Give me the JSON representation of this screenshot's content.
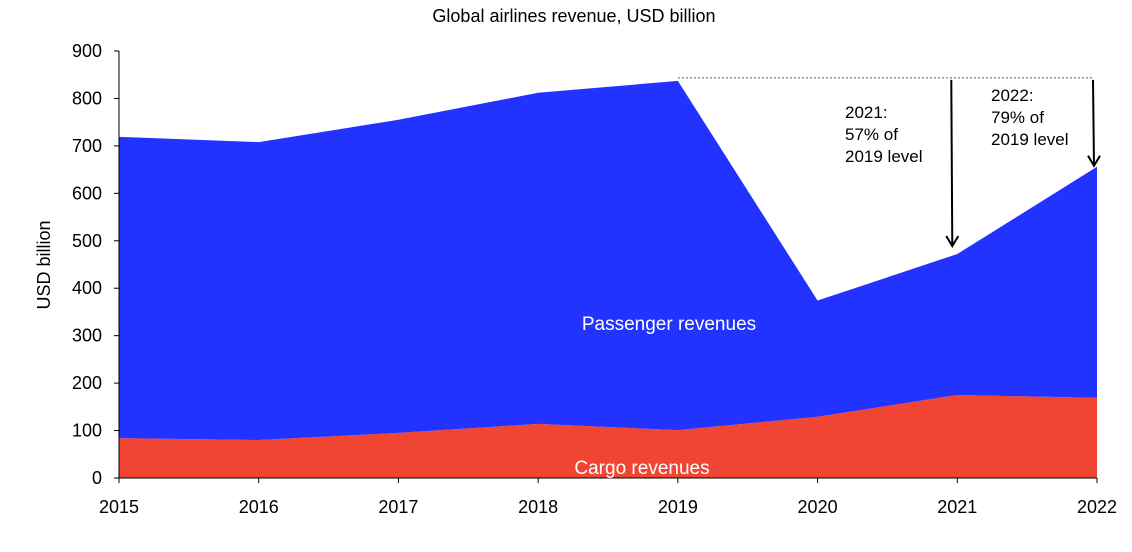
{
  "chart_data": {
    "type": "area",
    "stacked": true,
    "title": "Global airlines revenue, USD billion",
    "xlabel": "",
    "ylabel": "USD billion",
    "x": [
      2015,
      2016,
      2017,
      2018,
      2019,
      2020,
      2021,
      2022
    ],
    "ylim": [
      0,
      900
    ],
    "yticks": [
      0,
      100,
      200,
      300,
      400,
      500,
      600,
      700,
      800,
      900
    ],
    "grid": false,
    "series": [
      {
        "name": "Cargo revenues",
        "color": "#f04533",
        "values": [
          84,
          80,
          95,
          114,
          101,
          129,
          175,
          169
        ]
      },
      {
        "name": "Passenger revenues",
        "color": "#2233ff",
        "values": [
          635,
          628,
          660,
          698,
          736,
          245,
          297,
          487
        ]
      }
    ],
    "reference_line": {
      "value": 837,
      "from": 2019,
      "to": 2022,
      "style": "dotted"
    },
    "annotations": [
      {
        "x": 2021,
        "lines": [
          "2021:",
          "57% of",
          "2019 level"
        ]
      },
      {
        "x": 2022,
        "lines": [
          "2022:",
          "79% of",
          "2019 level"
        ]
      }
    ]
  }
}
